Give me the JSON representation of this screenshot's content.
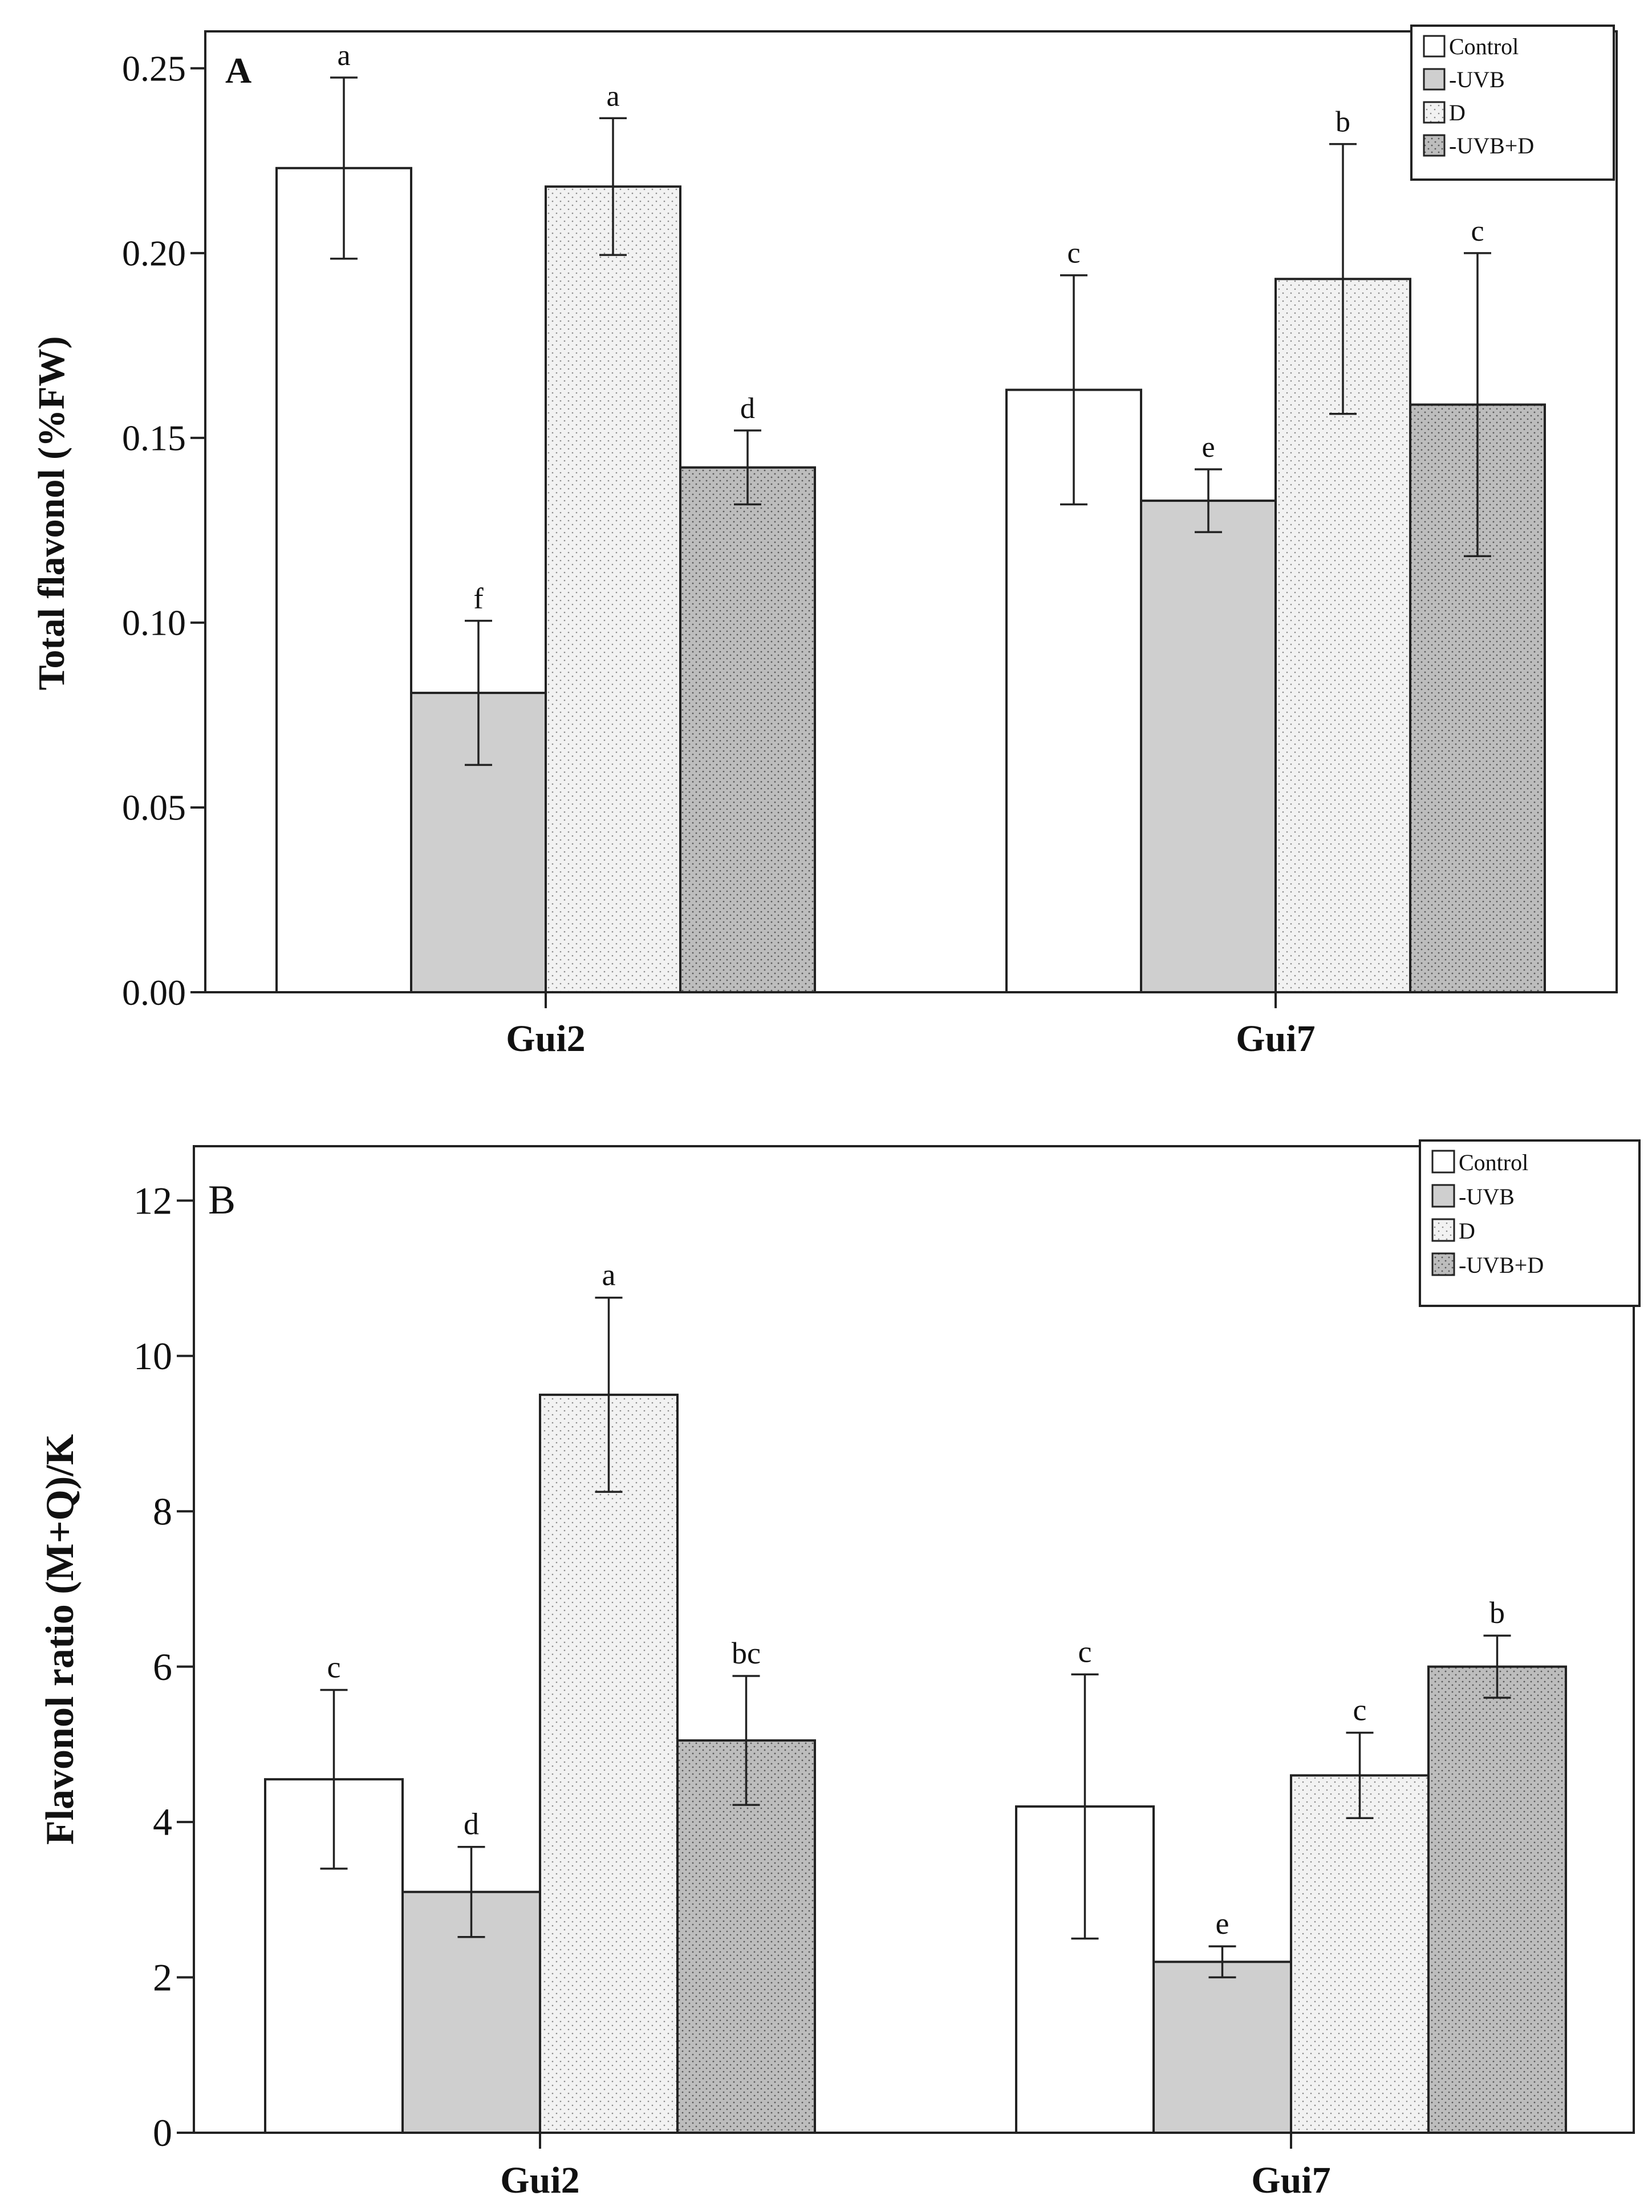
{
  "colors": {
    "Control": "#ffffff",
    "-UVB": "#cfcfcf",
    "D": "#f0f0f0",
    "-UVB+D": "#bdbdbd",
    "stroke": "#222222"
  },
  "chart_data": [
    {
      "type": "bar",
      "panel_label": "A",
      "title": "",
      "xlabel": "",
      "ylabel": "Total  flavonol  (%FW)",
      "ylim": [
        0,
        0.26
      ],
      "yticks": [
        "0.00",
        "0.05",
        "0.10",
        "0.15",
        "0.20",
        "0.25"
      ],
      "ytick_values": [
        0,
        0.05,
        0.1,
        0.15,
        0.2,
        0.25
      ],
      "categories": [
        "Gui2",
        "Gui7"
      ],
      "legend_position": "top-right",
      "series": [
        {
          "name": "Control",
          "values": [
            0.223,
            0.163
          ],
          "errors": [
            0.0245,
            0.031
          ],
          "letters": [
            "a",
            "c"
          ]
        },
        {
          "name": "-UVB",
          "values": [
            0.081,
            0.133
          ],
          "errors": [
            0.0195,
            0.0085
          ],
          "letters": [
            "f",
            "e"
          ]
        },
        {
          "name": "D",
          "values": [
            0.218,
            0.193
          ],
          "errors": [
            0.0185,
            0.0365
          ],
          "letters": [
            "a",
            "b"
          ]
        },
        {
          "name": "-UVB+D",
          "values": [
            0.142,
            0.159
          ],
          "errors": [
            0.01,
            0.041
          ],
          "letters": [
            "d",
            "c"
          ]
        }
      ]
    },
    {
      "type": "bar",
      "panel_label": "B",
      "title": "",
      "xlabel": "",
      "ylabel": "Flavonol ratio (M+Q)/K",
      "ylim": [
        0,
        12.7
      ],
      "yticks": [
        "0",
        "2",
        "4",
        "6",
        "8",
        "10",
        "12"
      ],
      "ytick_values": [
        0,
        2,
        4,
        6,
        8,
        10,
        12
      ],
      "categories": [
        "Gui2",
        "Gui7"
      ],
      "legend_position": "top-right",
      "series": [
        {
          "name": "Control",
          "values": [
            4.55,
            4.2
          ],
          "errors": [
            1.15,
            1.7
          ],
          "letters": [
            "c",
            "c"
          ]
        },
        {
          "name": "-UVB",
          "values": [
            3.1,
            2.2
          ],
          "errors": [
            0.58,
            0.2
          ],
          "letters": [
            "d",
            "e"
          ]
        },
        {
          "name": "D",
          "values": [
            9.5,
            4.6
          ],
          "errors": [
            1.25,
            0.55
          ],
          "letters": [
            "a",
            "c"
          ]
        },
        {
          "name": "-UVB+D",
          "values": [
            5.05,
            6.0
          ],
          "errors": [
            0.83,
            0.4
          ],
          "letters": [
            "bc",
            "b"
          ]
        }
      ]
    }
  ]
}
